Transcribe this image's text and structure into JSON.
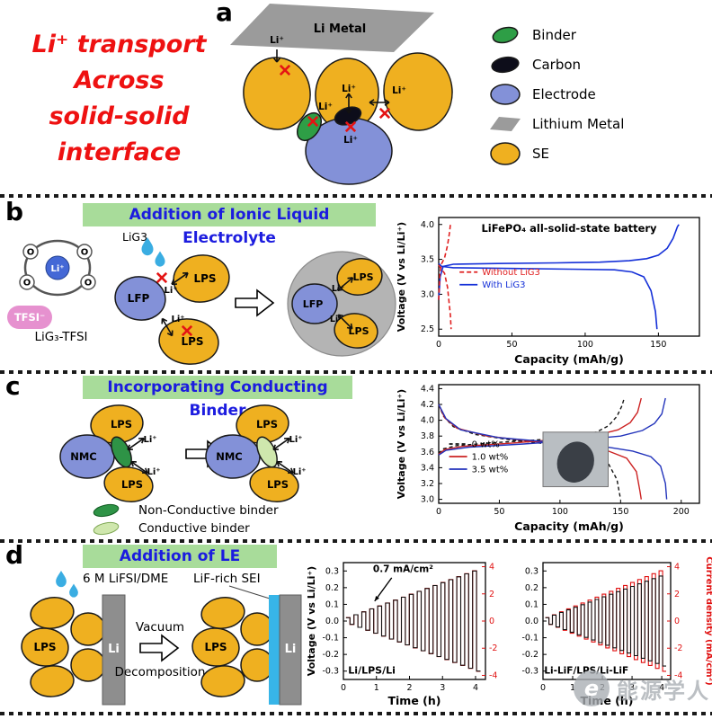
{
  "panel_a": {
    "label": "a",
    "headline_lines": [
      "Li⁺ transport",
      "Across",
      "solid-solid",
      "interface"
    ],
    "headline_color": "#ee1111",
    "li_metal": "Li Metal",
    "li_ion": "Li⁺",
    "legend": [
      {
        "name": "Binder",
        "color": "#2e9e46"
      },
      {
        "name": "Carbon",
        "color": "#0d0d1a"
      },
      {
        "name": "Electrode",
        "color": "#8391d8"
      },
      {
        "name": "Lithium Metal",
        "color": "#9b9b9b"
      },
      {
        "name": "SE",
        "color": "#efb020"
      }
    ]
  },
  "panel_b": {
    "label": "b",
    "title": "Addition of Ionic Liquid Electrolyte",
    "droplet_label": "LiG3",
    "molecule": {
      "li": "Li⁺",
      "o": "O",
      "tfsi": "TFSI⁻",
      "caption": "LiG₃-TFSI"
    },
    "labels": {
      "lfp": "LFP",
      "lps": "LPS",
      "li": "Li⁺"
    }
  },
  "panel_c": {
    "label": "c",
    "title": "Incorporating Conducting Binder",
    "labels": {
      "lps": "LPS",
      "nmc": "NMC",
      "li": "Li⁺"
    },
    "binder_legend": [
      {
        "name": "Non-Conductive binder",
        "color": "#2e9346"
      },
      {
        "name": "Conductive binder",
        "color": "#cfe7ad"
      }
    ]
  },
  "panel_d": {
    "label": "d",
    "title": "Addition of LE",
    "electrolyte_label": "6 M LiFSI/DME",
    "sei_label": "LiF-rich SEI",
    "arrow_top": "Vacuum",
    "arrow_bottom": "Decomposition",
    "labels": {
      "lps": "LPS",
      "li": "Li"
    }
  },
  "watermark": {
    "logo": "e",
    "text": "能源学人"
  },
  "chart_data": [
    {
      "id": "lifepo4-battery",
      "type": "line",
      "title": "LiFePO₄ all-solid-state battery",
      "xlabel": "Capacity (mAh/g)",
      "ylabel": "Voltage (V vs Li/Li⁺)",
      "xlim": [
        0,
        178
      ],
      "ylim": [
        2.4,
        4.1
      ],
      "xticks": [
        [
          0,
          "0"
        ],
        [
          50,
          "50"
        ],
        [
          100,
          "100"
        ],
        [
          150,
          "150"
        ]
      ],
      "yticks": [
        [
          2.5,
          "2.5"
        ],
        [
          3.0,
          "3.0"
        ],
        [
          3.5,
          "3.5"
        ],
        [
          4.0,
          "4.0"
        ]
      ],
      "legend": {
        "fx": 0.08,
        "fy": 0.46,
        "items": [
          {
            "label": "Without LiG3",
            "color": "#e02020",
            "dash": "5,3",
            "tcolor": "#e02020"
          },
          {
            "label": "With LiG3",
            "color": "#1530d8",
            "tcolor": "#1530d8"
          }
        ]
      },
      "series": [
        {
          "name": "With LiG3 charge",
          "color": "#1530d8",
          "width": 1.6,
          "points": [
            [
              0,
              2.92
            ],
            [
              1,
              3.25
            ],
            [
              3,
              3.4
            ],
            [
              10,
              3.43
            ],
            [
              40,
              3.44
            ],
            [
              80,
              3.45
            ],
            [
              110,
              3.46
            ],
            [
              130,
              3.48
            ],
            [
              142,
              3.51
            ],
            [
              150,
              3.56
            ],
            [
              156,
              3.66
            ],
            [
              160,
              3.8
            ],
            [
              163,
              3.97
            ],
            [
              164,
              4.0
            ]
          ]
        },
        {
          "name": "With LiG3 discharge",
          "color": "#1530d8",
          "width": 1.6,
          "points": [
            [
              0,
              3.44
            ],
            [
              2,
              3.4
            ],
            [
              10,
              3.38
            ],
            [
              50,
              3.37
            ],
            [
              90,
              3.36
            ],
            [
              120,
              3.35
            ],
            [
              132,
              3.32
            ],
            [
              140,
              3.25
            ],
            [
              145,
              3.05
            ],
            [
              148,
              2.75
            ],
            [
              149,
              2.5
            ]
          ]
        },
        {
          "name": "Without LiG3 charge",
          "color": "#e02020",
          "dash": "5,3",
          "width": 1.6,
          "points": [
            [
              0,
              2.92
            ],
            [
              0.8,
              3.3
            ],
            [
              2,
              3.44
            ],
            [
              4,
              3.52
            ],
            [
              6,
              3.7
            ],
            [
              7.5,
              3.9
            ],
            [
              8,
              4.0
            ]
          ]
        },
        {
          "name": "Without LiG3 discharge",
          "color": "#e02020",
          "dash": "5,3",
          "width": 1.6,
          "points": [
            [
              0,
              3.42
            ],
            [
              1.5,
              3.37
            ],
            [
              4,
              3.3
            ],
            [
              6,
              3.1
            ],
            [
              8,
              2.7
            ],
            [
              8.5,
              2.5
            ]
          ]
        }
      ]
    },
    {
      "id": "binder-content",
      "type": "line",
      "xlabel": "Capacity (mAh/g)",
      "ylabel": "Voltage (V vs Li/Li⁺)",
      "xlim": [
        0,
        215
      ],
      "ylim": [
        2.95,
        4.45
      ],
      "xticks": [
        [
          0,
          "0"
        ],
        [
          50,
          "50"
        ],
        [
          100,
          "100"
        ],
        [
          150,
          "150"
        ],
        [
          200,
          "200"
        ]
      ],
      "yticks": [
        [
          3.0,
          "3.0"
        ],
        [
          3.2,
          "3.2"
        ],
        [
          3.4,
          "3.4"
        ],
        [
          3.6,
          "3.6"
        ],
        [
          3.8,
          "3.8"
        ],
        [
          4.0,
          "4.0"
        ],
        [
          4.2,
          "4.2"
        ],
        [
          4.4,
          "4.4"
        ]
      ],
      "legend": {
        "fx": 0.04,
        "fy": 0.5,
        "items": [
          {
            "label": "0 wt%",
            "color": "#141414",
            "dash": "4,3"
          },
          {
            "label": "1.0 wt%",
            "color": "#cc2222"
          },
          {
            "label": "3.5 wt%",
            "color": "#2233bb"
          }
        ]
      },
      "inset": {
        "fx": 0.4,
        "fy": 0.4,
        "fw": 0.25,
        "fh": 0.46
      },
      "series": [
        {
          "name": "0 wt% charge",
          "color": "#141414",
          "dash": "4,3",
          "width": 1.4,
          "points": [
            [
              0,
              3.58
            ],
            [
              4,
              3.64
            ],
            [
              15,
              3.68
            ],
            [
              50,
              3.72
            ],
            [
              90,
              3.76
            ],
            [
              115,
              3.8
            ],
            [
              130,
              3.85
            ],
            [
              140,
              3.93
            ],
            [
              147,
              4.05
            ],
            [
              151,
              4.18
            ],
            [
              153,
              4.28
            ]
          ]
        },
        {
          "name": "0 wt% discharge",
          "color": "#141414",
          "dash": "4,3",
          "width": 1.4,
          "points": [
            [
              0,
              4.2
            ],
            [
              4,
              4.05
            ],
            [
              12,
              3.92
            ],
            [
              30,
              3.82
            ],
            [
              60,
              3.75
            ],
            [
              90,
              3.7
            ],
            [
              115,
              3.64
            ],
            [
              130,
              3.57
            ],
            [
              140,
              3.45
            ],
            [
              147,
              3.25
            ],
            [
              150,
              3.0
            ]
          ]
        },
        {
          "name": "1.0 wt% charge",
          "color": "#cc2222",
          "width": 1.4,
          "points": [
            [
              0,
              3.57
            ],
            [
              5,
              3.63
            ],
            [
              20,
              3.67
            ],
            [
              60,
              3.71
            ],
            [
              100,
              3.76
            ],
            [
              130,
              3.81
            ],
            [
              148,
              3.88
            ],
            [
              158,
              3.97
            ],
            [
              164,
              4.1
            ],
            [
              167,
              4.28
            ]
          ]
        },
        {
          "name": "1.0 wt% discharge",
          "color": "#cc2222",
          "width": 1.4,
          "points": [
            [
              0,
              4.2
            ],
            [
              5,
              4.03
            ],
            [
              15,
              3.9
            ],
            [
              40,
              3.8
            ],
            [
              80,
              3.73
            ],
            [
              115,
              3.68
            ],
            [
              140,
              3.61
            ],
            [
              155,
              3.52
            ],
            [
              163,
              3.35
            ],
            [
              166,
              3.1
            ],
            [
              167,
              3.0
            ]
          ]
        },
        {
          "name": "3.5 wt% charge",
          "color": "#2233bb",
          "width": 1.4,
          "points": [
            [
              0,
              3.56
            ],
            [
              6,
              3.62
            ],
            [
              25,
              3.66
            ],
            [
              70,
              3.7
            ],
            [
              115,
              3.75
            ],
            [
              150,
              3.8
            ],
            [
              168,
              3.87
            ],
            [
              178,
              3.96
            ],
            [
              184,
              4.08
            ],
            [
              187,
              4.28
            ]
          ]
        },
        {
          "name": "3.5 wt% discharge",
          "color": "#2233bb",
          "width": 1.4,
          "points": [
            [
              0,
              4.2
            ],
            [
              6,
              4.02
            ],
            [
              18,
              3.88
            ],
            [
              50,
              3.78
            ],
            [
              95,
              3.72
            ],
            [
              135,
              3.67
            ],
            [
              160,
              3.61
            ],
            [
              175,
              3.54
            ],
            [
              183,
              3.42
            ],
            [
              187,
              3.2
            ],
            [
              188,
              3.0
            ]
          ]
        }
      ]
    },
    {
      "id": "li-lps-li-cycling",
      "type": "line",
      "xlabel": "Time (h)",
      "ylabel": "Voltage (V vs Li/Li⁺)",
      "y2color": "#e01010",
      "xlim": [
        0,
        4.3
      ],
      "ylim": [
        -0.35,
        0.35
      ],
      "y2lim": [
        -4.3,
        4.3
      ],
      "xticks": [
        [
          0,
          "0"
        ],
        [
          1,
          "1"
        ],
        [
          2,
          "2"
        ],
        [
          3,
          "3"
        ],
        [
          4,
          "4"
        ]
      ],
      "yticks": [
        [
          -0.3,
          "-0.3"
        ],
        [
          -0.2,
          "-0.2"
        ],
        [
          -0.1,
          "-0.1"
        ],
        [
          0,
          "0.0"
        ],
        [
          0.1,
          "0.1"
        ],
        [
          0.2,
          "0.2"
        ],
        [
          0.3,
          "0.3"
        ]
      ],
      "y2ticks": [
        [
          -4,
          "-4"
        ],
        [
          -2,
          "-2"
        ],
        [
          0,
          "0"
        ],
        [
          2,
          "2"
        ],
        [
          4,
          "4"
        ]
      ],
      "texts": [
        {
          "t": "0.7 mA/cm²",
          "fx": 0.42,
          "fy": 0.08,
          "size": 10.5,
          "bold": true
        },
        {
          "t": "Li/LPS/Li",
          "fx": 0.2,
          "fy": 0.95,
          "size": 11,
          "bold": true
        }
      ],
      "arrows": [
        {
          "fx1": 0.34,
          "fy1": 0.13,
          "fx2": 0.22,
          "fy2": 0.33
        }
      ],
      "series": [
        {
          "name": "Current density",
          "axis": "y2",
          "color": "#e01010",
          "width": 1.1,
          "pulses": {
            "n": 17,
            "t0": 0.08,
            "t1": 4.15,
            "a0": 0.25,
            "a1": 3.7
          }
        },
        {
          "name": "Voltage",
          "color": "#141414",
          "width": 1.1,
          "pulses": {
            "n": 17,
            "t0": 0.08,
            "t1": 4.15,
            "a0": 0.02,
            "a1": 0.3
          }
        }
      ]
    },
    {
      "id": "li-lif-lps-cycling",
      "type": "line",
      "xlabel": "Time (h)",
      "y2label": "Current density (mA/cm²)",
      "y2color": "#e01010",
      "xlim": [
        0,
        4.3
      ],
      "ylim": [
        -0.35,
        0.35
      ],
      "y2lim": [
        -4.3,
        4.3
      ],
      "xticks": [
        [
          0,
          "0"
        ],
        [
          1,
          "1"
        ],
        [
          2,
          "2"
        ],
        [
          3,
          "3"
        ],
        [
          4,
          "4"
        ]
      ],
      "yticks": [
        [
          -0.3,
          "-0.3"
        ],
        [
          -0.2,
          "-0.2"
        ],
        [
          -0.1,
          "-0.1"
        ],
        [
          0,
          "0.0"
        ],
        [
          0.1,
          "0.1"
        ],
        [
          0.2,
          "0.2"
        ],
        [
          0.3,
          "0.3"
        ]
      ],
      "y2ticks": [
        [
          -4,
          "-4"
        ],
        [
          -2,
          "-2"
        ],
        [
          0,
          "0"
        ],
        [
          2,
          "2"
        ],
        [
          4,
          "4"
        ]
      ],
      "texts": [
        {
          "t": "Li-LiF/LPS/Li-LiF",
          "fx": 0.34,
          "fy": 0.95,
          "size": 10.5,
          "bold": true
        }
      ],
      "series": [
        {
          "name": "Current density",
          "axis": "y2",
          "color": "#e01010",
          "width": 1.1,
          "pulses": {
            "n": 17,
            "t0": 0.08,
            "t1": 4.15,
            "a0": 0.25,
            "a1": 3.7
          }
        },
        {
          "name": "Voltage",
          "color": "#141414",
          "width": 1.1,
          "pulses": {
            "n": 17,
            "t0": 0.08,
            "t1": 4.15,
            "a0": 0.02,
            "a1": 0.27
          }
        }
      ]
    }
  ]
}
